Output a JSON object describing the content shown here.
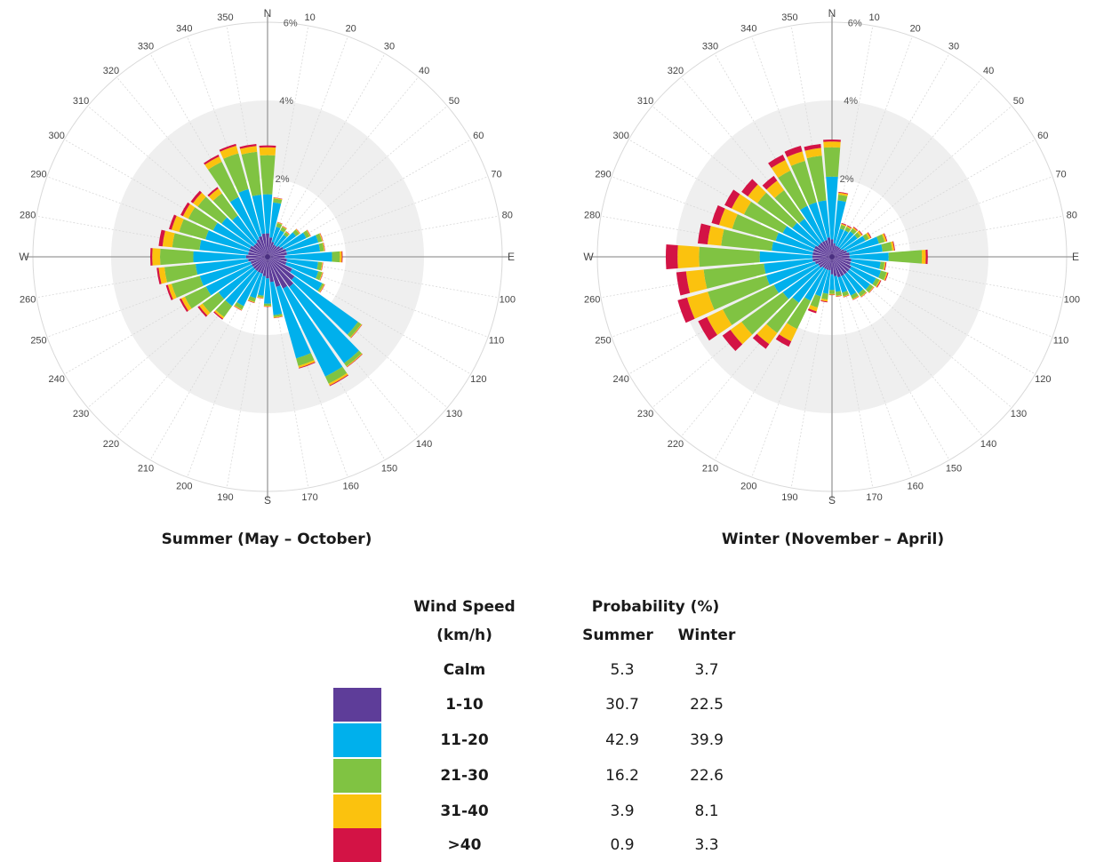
{
  "chart_data": [
    {
      "type": "polar-stacked-bar (wind rose)",
      "title": "Summer (May – October)",
      "unit": "%",
      "radial_ticks": [
        "2%",
        "4%",
        "6%"
      ],
      "rlim": [
        0,
        6
      ],
      "direction_labels": {
        "0": "N",
        "90": "E",
        "180": "S",
        "270": "W"
      },
      "angle_labels": [
        "10",
        "20",
        "30",
        "40",
        "50",
        "60",
        "70",
        "80",
        "100",
        "110",
        "120",
        "130",
        "140",
        "150",
        "160",
        "170",
        "190",
        "200",
        "210",
        "220",
        "230",
        "240",
        "250",
        "260",
        "280",
        "290",
        "300",
        "310",
        "320",
        "330",
        "340",
        "350"
      ],
      "speed_bins": [
        "1-10",
        "11-20",
        "21-30",
        "31-40",
        ">40"
      ],
      "directions": [
        0,
        10,
        20,
        30,
        40,
        50,
        60,
        70,
        80,
        90,
        100,
        110,
        120,
        130,
        140,
        150,
        160,
        170,
        180,
        190,
        200,
        210,
        220,
        230,
        240,
        250,
        260,
        270,
        280,
        290,
        300,
        310,
        320,
        330,
        340,
        350
      ],
      "cumulative": [
        [
          0.6,
          1.6,
          2.6,
          2.8,
          2.85
        ],
        [
          0.5,
          1.4,
          1.5,
          1.52,
          1.53
        ],
        [
          0.4,
          0.8,
          0.9,
          0.92,
          0.93
        ],
        [
          0.35,
          0.75,
          0.85,
          0.87,
          0.88
        ],
        [
          0.35,
          0.7,
          0.78,
          0.8,
          0.81
        ],
        [
          0.4,
          0.9,
          1.0,
          1.02,
          1.03
        ],
        [
          0.45,
          1.1,
          1.2,
          1.22,
          1.23
        ],
        [
          0.5,
          1.35,
          1.45,
          1.47,
          1.48
        ],
        [
          0.5,
          1.35,
          1.45,
          1.47,
          1.48
        ],
        [
          0.45,
          1.65,
          1.85,
          1.9,
          1.92
        ],
        [
          0.5,
          1.3,
          1.4,
          1.42,
          1.43
        ],
        [
          0.5,
          1.35,
          1.45,
          1.47,
          1.48
        ],
        [
          0.7,
          1.55,
          1.6,
          1.62,
          1.63
        ],
        [
          0.85,
          2.85,
          2.95,
          2.97,
          2.98
        ],
        [
          0.95,
          3.35,
          3.45,
          3.47,
          3.48
        ],
        [
          0.9,
          3.4,
          3.6,
          3.65,
          3.67
        ],
        [
          0.8,
          2.7,
          2.9,
          2.95,
          2.97
        ],
        [
          0.65,
          1.5,
          1.55,
          1.57,
          1.58
        ],
        [
          0.55,
          1.2,
          1.25,
          1.27,
          1.28
        ],
        [
          0.5,
          1.0,
          1.05,
          1.07,
          1.08
        ],
        [
          0.45,
          1.1,
          1.2,
          1.22,
          1.23
        ],
        [
          0.45,
          1.4,
          1.5,
          1.52,
          1.53
        ],
        [
          0.45,
          1.55,
          1.9,
          1.95,
          1.98
        ],
        [
          0.45,
          1.55,
          2.05,
          2.15,
          2.2
        ],
        [
          0.45,
          1.75,
          2.35,
          2.45,
          2.5
        ],
        [
          0.45,
          1.8,
          2.55,
          2.65,
          2.7
        ],
        [
          0.5,
          1.85,
          2.65,
          2.8,
          2.85
        ],
        [
          0.55,
          1.9,
          2.75,
          2.95,
          3.0
        ],
        [
          0.5,
          1.75,
          2.45,
          2.7,
          2.8
        ],
        [
          0.5,
          1.65,
          2.35,
          2.55,
          2.62
        ],
        [
          0.5,
          1.55,
          2.25,
          2.4,
          2.47
        ],
        [
          0.45,
          1.45,
          2.2,
          2.35,
          2.42
        ],
        [
          0.45,
          1.3,
          2.0,
          2.15,
          2.2
        ],
        [
          0.5,
          1.7,
          2.7,
          2.85,
          2.9
        ],
        [
          0.55,
          1.8,
          2.75,
          2.95,
          3.0
        ],
        [
          0.6,
          1.6,
          2.7,
          2.85,
          2.9
        ]
      ]
    },
    {
      "type": "polar-stacked-bar (wind rose)",
      "title": "Winter (November – April)",
      "unit": "%",
      "radial_ticks": [
        "2%",
        "4%",
        "6%"
      ],
      "rlim": [
        0,
        6
      ],
      "direction_labels": {
        "0": "N",
        "90": "E",
        "180": "S",
        "270": "W"
      },
      "angle_labels": [
        "10",
        "20",
        "30",
        "40",
        "50",
        "60",
        "70",
        "80",
        "100",
        "110",
        "120",
        "130",
        "140",
        "150",
        "160",
        "170",
        "190",
        "200",
        "210",
        "220",
        "230",
        "240",
        "250",
        "260",
        "280",
        "290",
        "300",
        "310",
        "320",
        "330",
        "340",
        "350"
      ],
      "speed_bins": [
        "1-10",
        "11-20",
        "21-30",
        "31-40",
        ">40"
      ],
      "directions": [
        0,
        10,
        20,
        30,
        40,
        50,
        60,
        70,
        80,
        90,
        100,
        110,
        120,
        130,
        140,
        150,
        160,
        170,
        180,
        190,
        200,
        210,
        220,
        230,
        240,
        250,
        260,
        270,
        280,
        290,
        300,
        310,
        320,
        330,
        340,
        350
      ],
      "cumulative": [
        [
          0.45,
          2.05,
          2.8,
          2.95,
          3.0
        ],
        [
          0.35,
          1.45,
          1.6,
          1.65,
          1.67
        ],
        [
          0.3,
          0.75,
          0.85,
          0.88,
          0.9
        ],
        [
          0.3,
          0.75,
          0.85,
          0.88,
          0.9
        ],
        [
          0.3,
          0.8,
          0.9,
          0.93,
          0.95
        ],
        [
          0.3,
          0.8,
          0.9,
          0.95,
          0.97
        ],
        [
          0.35,
          0.95,
          1.05,
          1.1,
          1.12
        ],
        [
          0.4,
          1.25,
          1.4,
          1.45,
          1.47
        ],
        [
          0.45,
          1.3,
          1.55,
          1.6,
          1.62
        ],
        [
          0.45,
          1.45,
          2.3,
          2.4,
          2.45
        ],
        [
          0.5,
          1.25,
          1.35,
          1.38,
          1.4
        ],
        [
          0.5,
          1.3,
          1.45,
          1.48,
          1.5
        ],
        [
          0.55,
          1.25,
          1.35,
          1.38,
          1.4
        ],
        [
          0.55,
          1.2,
          1.3,
          1.32,
          1.33
        ],
        [
          0.55,
          1.15,
          1.25,
          1.27,
          1.28
        ],
        [
          0.55,
          1.1,
          1.2,
          1.22,
          1.23
        ],
        [
          0.55,
          0.95,
          1.05,
          1.07,
          1.08
        ],
        [
          0.5,
          0.9,
          1.0,
          1.02,
          1.03
        ],
        [
          0.45,
          0.85,
          0.95,
          0.97,
          0.98
        ],
        [
          0.35,
          0.95,
          1.1,
          1.15,
          1.17
        ],
        [
          0.35,
          1.05,
          1.35,
          1.45,
          1.5
        ],
        [
          0.35,
          1.25,
          2.05,
          2.4,
          2.55
        ],
        [
          0.35,
          1.45,
          2.4,
          2.75,
          2.9
        ],
        [
          0.4,
          1.55,
          2.85,
          3.2,
          3.45
        ],
        [
          0.4,
          1.65,
          3.1,
          3.55,
          3.8
        ],
        [
          0.45,
          1.75,
          3.3,
          3.85,
          4.1
        ],
        [
          0.5,
          1.75,
          3.3,
          3.75,
          4.0
        ],
        [
          0.5,
          1.85,
          3.4,
          3.95,
          4.25
        ],
        [
          0.5,
          1.55,
          2.85,
          3.2,
          3.45
        ],
        [
          0.5,
          1.5,
          2.65,
          3.0,
          3.2
        ],
        [
          0.5,
          1.4,
          2.5,
          2.85,
          3.05
        ],
        [
          0.45,
          1.25,
          2.35,
          2.65,
          2.85
        ],
        [
          0.45,
          1.2,
          2.1,
          2.4,
          2.55
        ],
        [
          0.45,
          1.45,
          2.45,
          2.75,
          2.9
        ],
        [
          0.45,
          1.45,
          2.55,
          2.8,
          2.95
        ],
        [
          0.5,
          1.45,
          2.6,
          2.8,
          2.9
        ]
      ]
    }
  ],
  "legend": {
    "header_speed_line1": "Wind Speed",
    "header_speed_line2": "(km/h)",
    "header_prob": "Probability (%)",
    "header_summer": "Summer",
    "header_winter": "Winter",
    "rows": [
      {
        "label": "Calm",
        "summer": "5.3",
        "winter": "3.7",
        "color": ""
      },
      {
        "label": "1-10",
        "summer": "30.7",
        "winter": "22.5",
        "color": "#5e3d99"
      },
      {
        "label": "11-20",
        "summer": "42.9",
        "winter": "39.9",
        "color": "#00b0ec"
      },
      {
        "label": "21-30",
        "summer": "16.2",
        "winter": "22.6",
        "color": "#80c342"
      },
      {
        "label": "31-40",
        "summer": "3.9",
        "winter": "8.1",
        "color": "#fbc20e"
      },
      {
        "label": ">40",
        "summer": "0.9",
        "winter": "3.3",
        "color": "#d31345"
      }
    ]
  },
  "colors": {
    "bins": [
      "#5e3d99",
      "#00b0ec",
      "#80c342",
      "#fbc20e",
      "#d31345"
    ],
    "ring": "#efefef",
    "grid": "#d9d9d9",
    "axis": "#9a9a9a"
  }
}
